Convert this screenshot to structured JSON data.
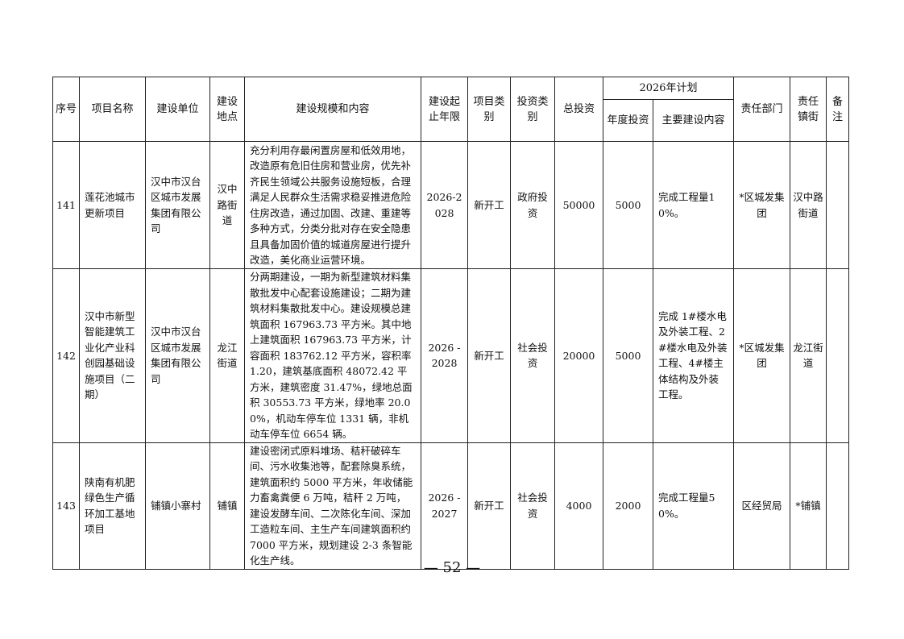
{
  "headers": {
    "seq": "序号",
    "name": "项目名称",
    "unit": "建设单位",
    "location": "建设地点",
    "scope": "建设规模和内容",
    "period": "建设起止年限",
    "category": "项目类别",
    "invest_type": "投资类别",
    "total": "总投资",
    "plan": "2026年计划",
    "annual": "年度投资",
    "main_content": "主要建设内容",
    "dept": "责任部门",
    "town": "责任镇街",
    "note": "备注"
  },
  "rows": [
    {
      "seq": "141",
      "name": "莲花池城市更新项目",
      "unit": "汉中市汉台区城市发展集团有限公司",
      "location": "汉中路街道",
      "scope": "充分利用存最闲置房屋和低效用地，改造原有危旧住房和营业房，优先补齐民生领域公共服务设施短板，合理满足人民群众生活需求稳妥推进危险住房改造，通过加固、改建、重建等多种方式，分类分批对存在安全隐患且具备加固价值的城道房屋进行提升改造，美化商业运营环境。",
      "period": "2026-2028",
      "category": "新开工",
      "invest_type": "政府投资",
      "total": "50000",
      "annual": "5000",
      "main_content": "完成工程量10%。",
      "dept": "*区城发集团",
      "town": "汉中路街道",
      "note": ""
    },
    {
      "seq": "142",
      "name": "汉中市新型智能建筑工业化产业科创园基础设施项目（二期）",
      "unit": "汉中市汉台区城市发展集团有限公司",
      "location": "龙江街道",
      "scope": "分两期建设，一期为新型建筑材料集散批发中心配套设施建设；二期为建筑材料集散批发中心。建设规模总建筑面积 167963.73 平方米。其中地上建筑面积 167963.73 平方米，计容面积 183762.12 平方米，容积率 1.20，建筑基底面积 48072.42 平方米，建筑密度 31.47%，绿地总面积 30553.73 平方米，绿地率 20.00%，机动车停车位 1331 辆，非机动车停车位 6654 辆。",
      "period": "2026 - 2028",
      "category": "新开工",
      "invest_type": "社会投资",
      "total": "20000",
      "annual": "5000",
      "main_content": "完成 1#楼水电及外装工程、2#楼水电及外装工程、4#楼主体结构及外装工程。",
      "dept": "*区城发集团",
      "town": "龙江街道",
      "note": ""
    },
    {
      "seq": "143",
      "name": "陕南有机肥绿色生产循环加工基地项目",
      "unit": "铺镇小寨村",
      "location": "铺镇",
      "scope": "建设密闭式原料堆场、秸秆破碎车间、污水收集池等，配套除臭系统，建筑面积约 5000 平方米，年收储能力畜禽粪便 6 万吨，秸秆 2 万吨，建设发酵车间、二次陈化车间、深加工造粒车间、主生产车间建筑面积约 7000 平方米，规划建设 2-3 条智能化生产线。",
      "period": "2026 - 2027",
      "category": "新开工",
      "invest_type": "社会投资",
      "total": "4000",
      "annual": "2000",
      "main_content": "完成工程量50%。",
      "dept": "区经贸局",
      "town": "*铺镇",
      "note": ""
    }
  ],
  "page_number": "— 52 —"
}
